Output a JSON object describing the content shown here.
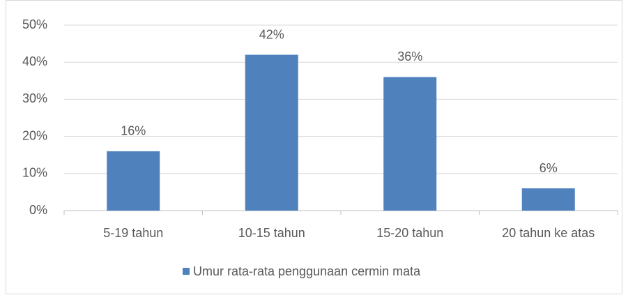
{
  "chart_data": {
    "type": "bar",
    "categories": [
      "5-19 tahun",
      "10-15 tahun",
      "15-20 tahun",
      "20 tahun ke atas"
    ],
    "series": [
      {
        "name": "Umur rata-rata penggunaan cermin mata",
        "color": "#4f81bd",
        "values": [
          16,
          42,
          36,
          6
        ],
        "value_labels": [
          "16%",
          "42%",
          "36%",
          "6%"
        ]
      }
    ],
    "ylim": [
      0,
      50
    ],
    "yticks": [
      {
        "value": 0,
        "label": "0%"
      },
      {
        "value": 10,
        "label": "10%"
      },
      {
        "value": 20,
        "label": "20%"
      },
      {
        "value": 30,
        "label": "30%"
      },
      {
        "value": 40,
        "label": "40%"
      },
      {
        "value": 50,
        "label": "50%"
      }
    ],
    "grid": true,
    "legend": "bottom"
  }
}
